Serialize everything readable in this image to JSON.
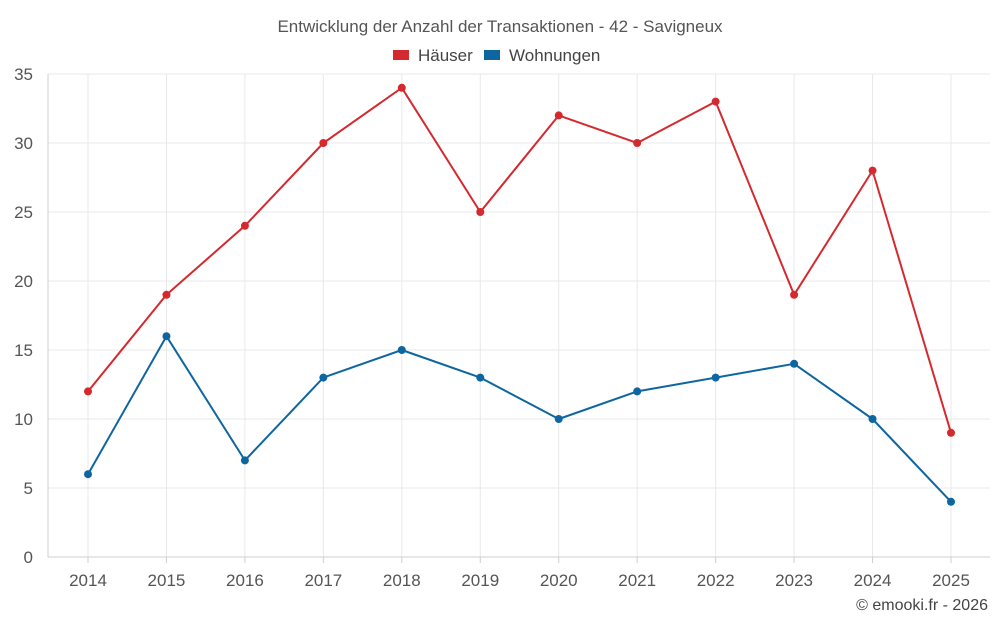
{
  "chart_data": {
    "type": "line",
    "title": "Entwicklung der Anzahl der Transaktionen - 42 - Savigneux",
    "categories": [
      "2014",
      "2015",
      "2016",
      "2017",
      "2018",
      "2019",
      "2020",
      "2021",
      "2022",
      "2023",
      "2024",
      "2025"
    ],
    "series": [
      {
        "name": "Häuser",
        "color": "#d42a2f",
        "values": [
          12,
          19,
          24,
          30,
          34,
          25,
          32,
          30,
          33,
          19,
          28,
          9
        ]
      },
      {
        "name": "Wohnungen",
        "color": "#0d669f",
        "values": [
          6,
          16,
          7,
          13,
          15,
          13,
          10,
          12,
          13,
          14,
          10,
          4
        ]
      }
    ],
    "yticks": [
      0,
      5,
      10,
      15,
      20,
      25,
      30,
      35
    ],
    "ylim": [
      0,
      35
    ],
    "grid": true,
    "legend_position": "top-center",
    "xlabel": "",
    "ylabel": ""
  },
  "credit": "© emooki.fr - 2026"
}
